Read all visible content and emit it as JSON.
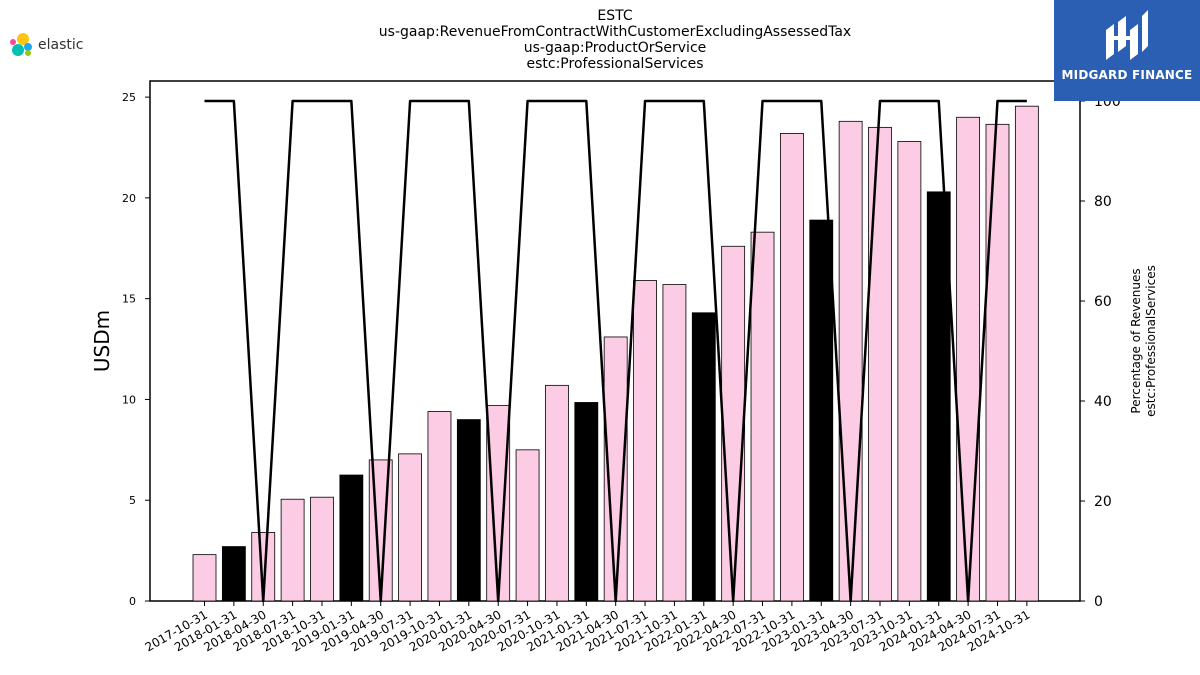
{
  "logos": {
    "elastic_text": "elastic",
    "midgard_text": "MIDGARD FINANCE"
  },
  "colors": {
    "bar_fill": "#fccbe4",
    "highlight_fill": "#000000",
    "line": "#000000",
    "logo_bg": "#2b5fb4"
  },
  "chart_data": {
    "type": "bar",
    "title_lines": [
      "ESTC",
      "us-gaap:RevenueFromContractWithCustomerExcludingAssessedTax",
      "us-gaap:ProductOrService",
      "estc:ProfessionalServices"
    ],
    "ylabel": "USDm",
    "y2label_lines": [
      "Percentage of Revenues",
      "estc:ProfessionalServices"
    ],
    "ylim": [
      0,
      25.8
    ],
    "y2lim": [
      0,
      100
    ],
    "yticks": [
      "0",
      "5",
      "10",
      "15",
      "20",
      "25"
    ],
    "y2ticks": [
      "0",
      "20",
      "40",
      "60",
      "80",
      "100"
    ],
    "categories": [
      "2017-10-31",
      "2018-01-31",
      "2018-04-30",
      "2018-07-31",
      "2018-10-31",
      "2019-01-31",
      "2019-04-30",
      "2019-07-31",
      "2019-10-31",
      "2020-01-31",
      "2020-04-30",
      "2020-07-31",
      "2020-10-31",
      "2021-01-31",
      "2021-04-30",
      "2021-07-31",
      "2021-10-31",
      "2022-01-31",
      "2022-04-30",
      "2022-07-31",
      "2022-10-31",
      "2023-01-31",
      "2023-04-30",
      "2023-07-31",
      "2023-10-31",
      "2024-01-31",
      "2024-04-30",
      "2024-07-31",
      "2024-10-31"
    ],
    "values": [
      2.3,
      2.7,
      3.4,
      5.05,
      5.15,
      6.25,
      7.0,
      7.3,
      9.4,
      9.0,
      9.7,
      7.5,
      10.7,
      9.85,
      13.1,
      15.9,
      15.7,
      14.3,
      17.6,
      18.3,
      23.2,
      18.9,
      23.8,
      23.5,
      22.8,
      20.3,
      24.0,
      23.65,
      24.55
    ],
    "highlight": [
      false,
      true,
      false,
      false,
      false,
      true,
      false,
      false,
      false,
      true,
      false,
      false,
      false,
      true,
      false,
      false,
      false,
      true,
      false,
      false,
      false,
      true,
      false,
      false,
      false,
      true,
      false,
      false,
      false
    ],
    "line_values": [
      100,
      100,
      0,
      100,
      100,
      100,
      0,
      100,
      100,
      100,
      0,
      100,
      100,
      100,
      0,
      100,
      100,
      100,
      0,
      100,
      100,
      100,
      0,
      100,
      100,
      100,
      0,
      100,
      100
    ],
    "grid": false,
    "legend": "none"
  }
}
